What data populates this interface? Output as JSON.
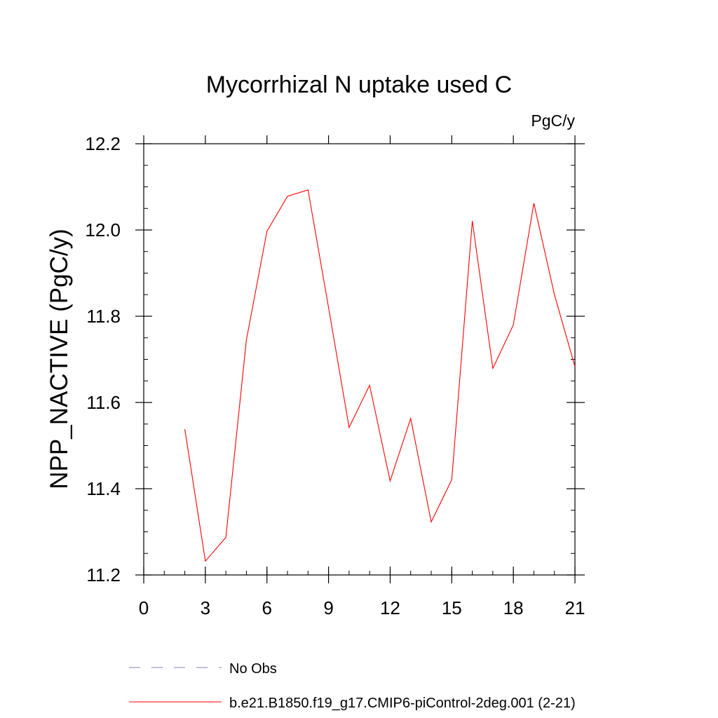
{
  "chart_data": {
    "type": "line",
    "title": "Mycorrhizal N uptake used C",
    "units": "PgC/y",
    "ylabel": "NPP_NACTIVE  (PgC/y)",
    "xlabel": "",
    "xlim": [
      0,
      21
    ],
    "ylim": [
      11.2,
      12.2
    ],
    "x_ticks": [
      0,
      3,
      6,
      9,
      12,
      15,
      18,
      21
    ],
    "x_tick_labels": [
      "0",
      "3",
      "6",
      "9",
      "12",
      "15",
      "18",
      "21"
    ],
    "y_ticks": [
      11.2,
      11.4,
      11.6,
      11.8,
      12.0,
      12.2
    ],
    "y_tick_labels": [
      "11.2",
      "11.4",
      "11.6",
      "11.8",
      "12.0",
      "12.2"
    ],
    "grid": false,
    "legend_position": "bottom-left",
    "series": [
      {
        "name": "b.e21.B1850.f19_g17.CMIP6-piControl-2deg.001 (2-21)",
        "color": "#ff0000",
        "dash": "solid",
        "x": [
          2,
          3,
          4,
          5,
          6,
          7,
          8,
          9,
          10,
          11,
          12,
          13,
          14,
          15,
          16,
          17,
          18,
          19,
          20,
          21
        ],
        "y": [
          11.538,
          11.232,
          11.287,
          11.745,
          11.997,
          12.078,
          12.093,
          11.82,
          11.542,
          11.64,
          11.418,
          11.563,
          11.323,
          11.421,
          12.021,
          11.679,
          11.78,
          12.062,
          11.85,
          11.683
        ]
      }
    ],
    "legend": [
      {
        "label": "No Obs",
        "color": "#8080c0",
        "dash": "dashed"
      },
      {
        "label": "b.e21.B1850.f19_g17.CMIP6-piControl-2deg.001 (2-21)",
        "color": "#ff0000",
        "dash": "solid"
      }
    ]
  }
}
